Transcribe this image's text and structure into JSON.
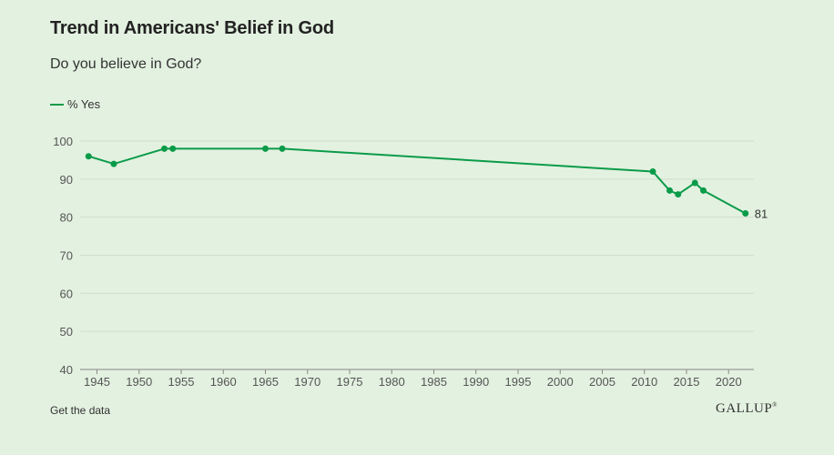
{
  "colors": {
    "line": "#0a9b49",
    "grid": "#cfdfcc",
    "axis": "#888888",
    "background": "#e3f1e0"
  },
  "chart_data": {
    "type": "line",
    "title": "Trend in Americans' Belief in God",
    "subtitle": "Do you believe in God?",
    "xlabel": "",
    "ylabel": "",
    "xlim": [
      1943,
      2023
    ],
    "ylim": [
      40,
      100
    ],
    "x_ticks": [
      1945,
      1950,
      1955,
      1960,
      1965,
      1970,
      1975,
      1980,
      1985,
      1990,
      1995,
      2000,
      2005,
      2010,
      2015,
      2020
    ],
    "y_ticks": [
      40,
      50,
      60,
      70,
      80,
      90,
      100
    ],
    "grid": true,
    "legend": "top-left",
    "series": [
      {
        "name": "% Yes",
        "points": [
          {
            "x": 1944,
            "y": 96
          },
          {
            "x": 1947,
            "y": 94
          },
          {
            "x": 1953,
            "y": 98
          },
          {
            "x": 1954,
            "y": 98
          },
          {
            "x": 1965,
            "y": 98
          },
          {
            "x": 1967,
            "y": 98
          },
          {
            "x": 2011,
            "y": 92
          },
          {
            "x": 2013,
            "y": 87
          },
          {
            "x": 2014,
            "y": 86
          },
          {
            "x": 2016,
            "y": 89
          },
          {
            "x": 2017,
            "y": 87
          },
          {
            "x": 2022,
            "y": 81
          }
        ]
      }
    ],
    "annotations": [
      {
        "text": "81",
        "x": 2022,
        "y": 81
      }
    ]
  },
  "footer": {
    "get_data_label": "Get the data",
    "brand": "GALLUP",
    "brand_mark": "®"
  }
}
